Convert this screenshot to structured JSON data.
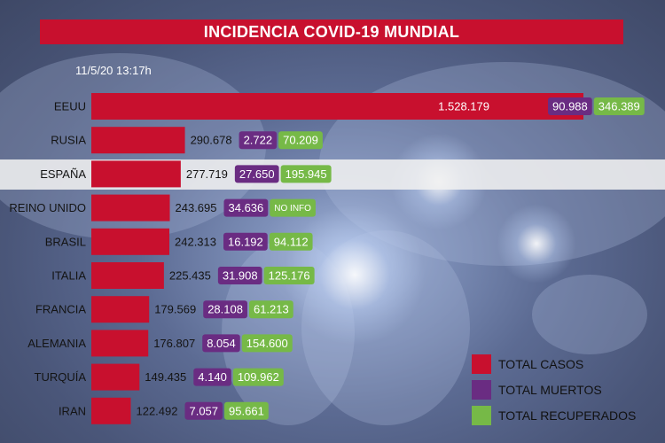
{
  "title": "INCIDENCIA COVID-19 MUNDIAL",
  "timestamp": "11/5/20 13:17h",
  "colors": {
    "casos": "#c8102e",
    "muertos": "#6a2c82",
    "recuperados": "#76b947"
  },
  "chart_data": {
    "type": "bar",
    "orientation": "horizontal",
    "categories": [
      "EEUU",
      "RUSIA",
      "ESPAÑA",
      "REINO UNIDO",
      "BRASIL",
      "ITALIA",
      "FRANCIA",
      "ALEMANIA",
      "TURQUÍA",
      "IRAN"
    ],
    "series": [
      {
        "name": "TOTAL CASOS",
        "values": [
          1528179,
          290678,
          277719,
          243695,
          242313,
          225435,
          179569,
          176807,
          149435,
          122492
        ],
        "labels": [
          "1.528.179",
          "290.678",
          "277.719",
          "243.695",
          "242.313",
          "225.435",
          "179.569",
          "176.807",
          "149.435",
          "122.492"
        ]
      },
      {
        "name": "TOTAL MUERTOS",
        "values": [
          90988,
          2722,
          27650,
          34636,
          16192,
          31908,
          28108,
          8054,
          4140,
          7057
        ],
        "labels": [
          "90.988",
          "2.722",
          "27.650",
          "34.636",
          "16.192",
          "31.908",
          "28.108",
          "8.054",
          "4.140",
          "7.057"
        ]
      },
      {
        "name": "TOTAL RECUPERADOS",
        "values": [
          346389,
          70209,
          195945,
          null,
          94112,
          125176,
          61213,
          154600,
          109962,
          95661
        ],
        "labels": [
          "346.389",
          "70.209",
          "195.945",
          "NO INFO",
          "94.112",
          "125.176",
          "61.213",
          "154.600",
          "109.962",
          "95.661"
        ]
      }
    ],
    "legend_position": "bottom-right",
    "highlighted_category": "ESPAÑA"
  }
}
